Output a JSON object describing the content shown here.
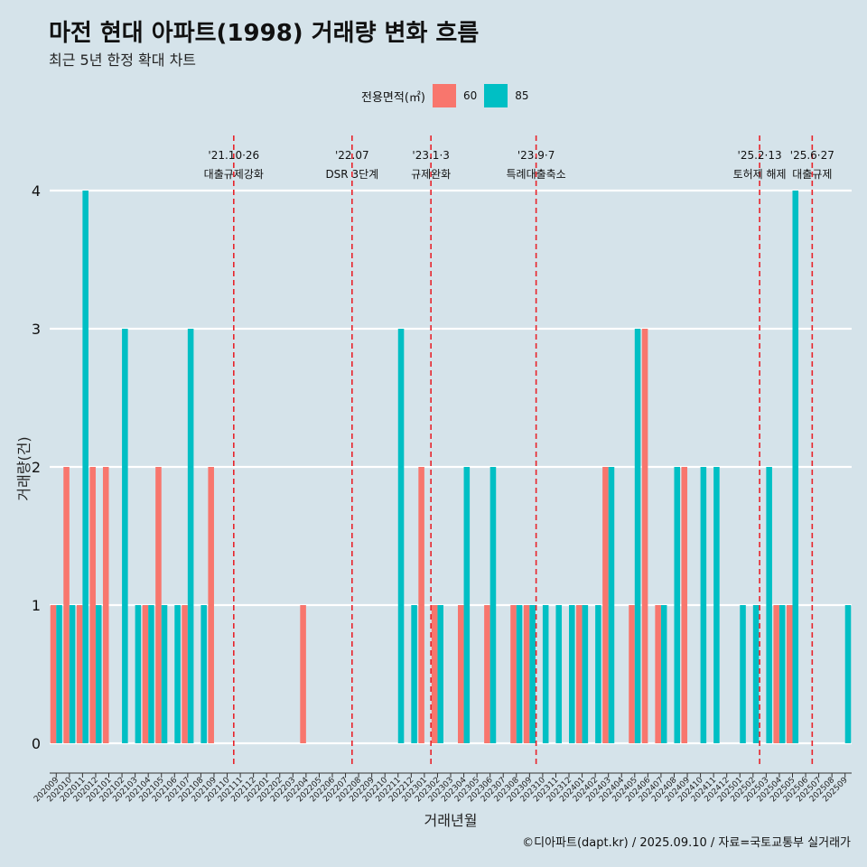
{
  "title": "마전 현대 아파트(1998) 거래량 변화 흐름",
  "subtitle": "최근 5년 한정 확대 차트",
  "legend": {
    "title": "전용면적(㎡)",
    "items": [
      {
        "label": "60",
        "color": "#f8766d"
      },
      {
        "label": "85",
        "color": "#00bfc4"
      }
    ]
  },
  "caption": "©디아파트(dapt.kr) / 2025.09.10 / 자료=국토교통부 실거래가",
  "chart_data": {
    "type": "bar",
    "xlabel": "거래년월",
    "ylabel": "거래량(건)",
    "ylim": [
      0,
      4
    ],
    "yticks": [
      0,
      1,
      2,
      3,
      4
    ],
    "categories": [
      "202009",
      "202010",
      "202011",
      "202012",
      "202101",
      "202102",
      "202103",
      "202104",
      "202105",
      "202106",
      "202107",
      "202108",
      "202109",
      "202110",
      "202111",
      "202112",
      "202201",
      "202202",
      "202203",
      "202204",
      "202205",
      "202206",
      "202207",
      "202208",
      "202209",
      "202210",
      "202211",
      "202212",
      "202301",
      "202302",
      "202303",
      "202304",
      "202305",
      "202306",
      "202307",
      "202308",
      "202309",
      "202310",
      "202311",
      "202312",
      "202401",
      "202402",
      "202403",
      "202404",
      "202405",
      "202406",
      "202407",
      "202408",
      "202409",
      "202410",
      "202411",
      "202412",
      "202501",
      "202502",
      "202503",
      "202504",
      "202505",
      "202506",
      "202507",
      "202508",
      "202509"
    ],
    "series": [
      {
        "name": "60",
        "color": "#f8766d",
        "values": [
          1,
          2,
          1,
          2,
          2,
          0,
          0,
          1,
          2,
          0,
          1,
          0,
          2,
          0,
          0,
          0,
          0,
          0,
          0,
          1,
          0,
          0,
          0,
          0,
          0,
          0,
          0,
          0,
          2,
          1,
          0,
          1,
          0,
          1,
          0,
          1,
          1,
          0,
          0,
          0,
          1,
          0,
          2,
          0,
          1,
          3,
          1,
          0,
          2,
          0,
          0,
          0,
          0,
          0,
          0,
          1,
          1,
          0,
          0,
          0,
          0
        ]
      },
      {
        "name": "85",
        "color": "#00bfc4",
        "values": [
          1,
          1,
          4,
          1,
          0,
          3,
          1,
          1,
          1,
          1,
          3,
          1,
          0,
          0,
          0,
          0,
          0,
          0,
          0,
          0,
          0,
          0,
          0,
          0,
          0,
          0,
          3,
          1,
          0,
          1,
          0,
          2,
          0,
          2,
          0,
          1,
          1,
          1,
          1,
          1,
          1,
          1,
          2,
          0,
          3,
          0,
          1,
          2,
          0,
          2,
          2,
          0,
          1,
          1,
          2,
          1,
          4,
          0,
          0,
          0,
          1
        ]
      }
    ],
    "events": [
      {
        "date": "'21.10·26",
        "label": "대출규제강화",
        "after": "202110"
      },
      {
        "date": "'22.07",
        "label": "DSR 3단계",
        "after": "202207"
      },
      {
        "date": "'23.1·3",
        "label": "규제완화",
        "after": "202301"
      },
      {
        "date": "'23.9·7",
        "label": "특례대출축소",
        "after": "202309"
      },
      {
        "date": "'25.2·13",
        "label": "토허제 해제",
        "after": "202502"
      },
      {
        "date": "'25.6·27",
        "label": "대출규제",
        "after": "202506"
      }
    ]
  }
}
